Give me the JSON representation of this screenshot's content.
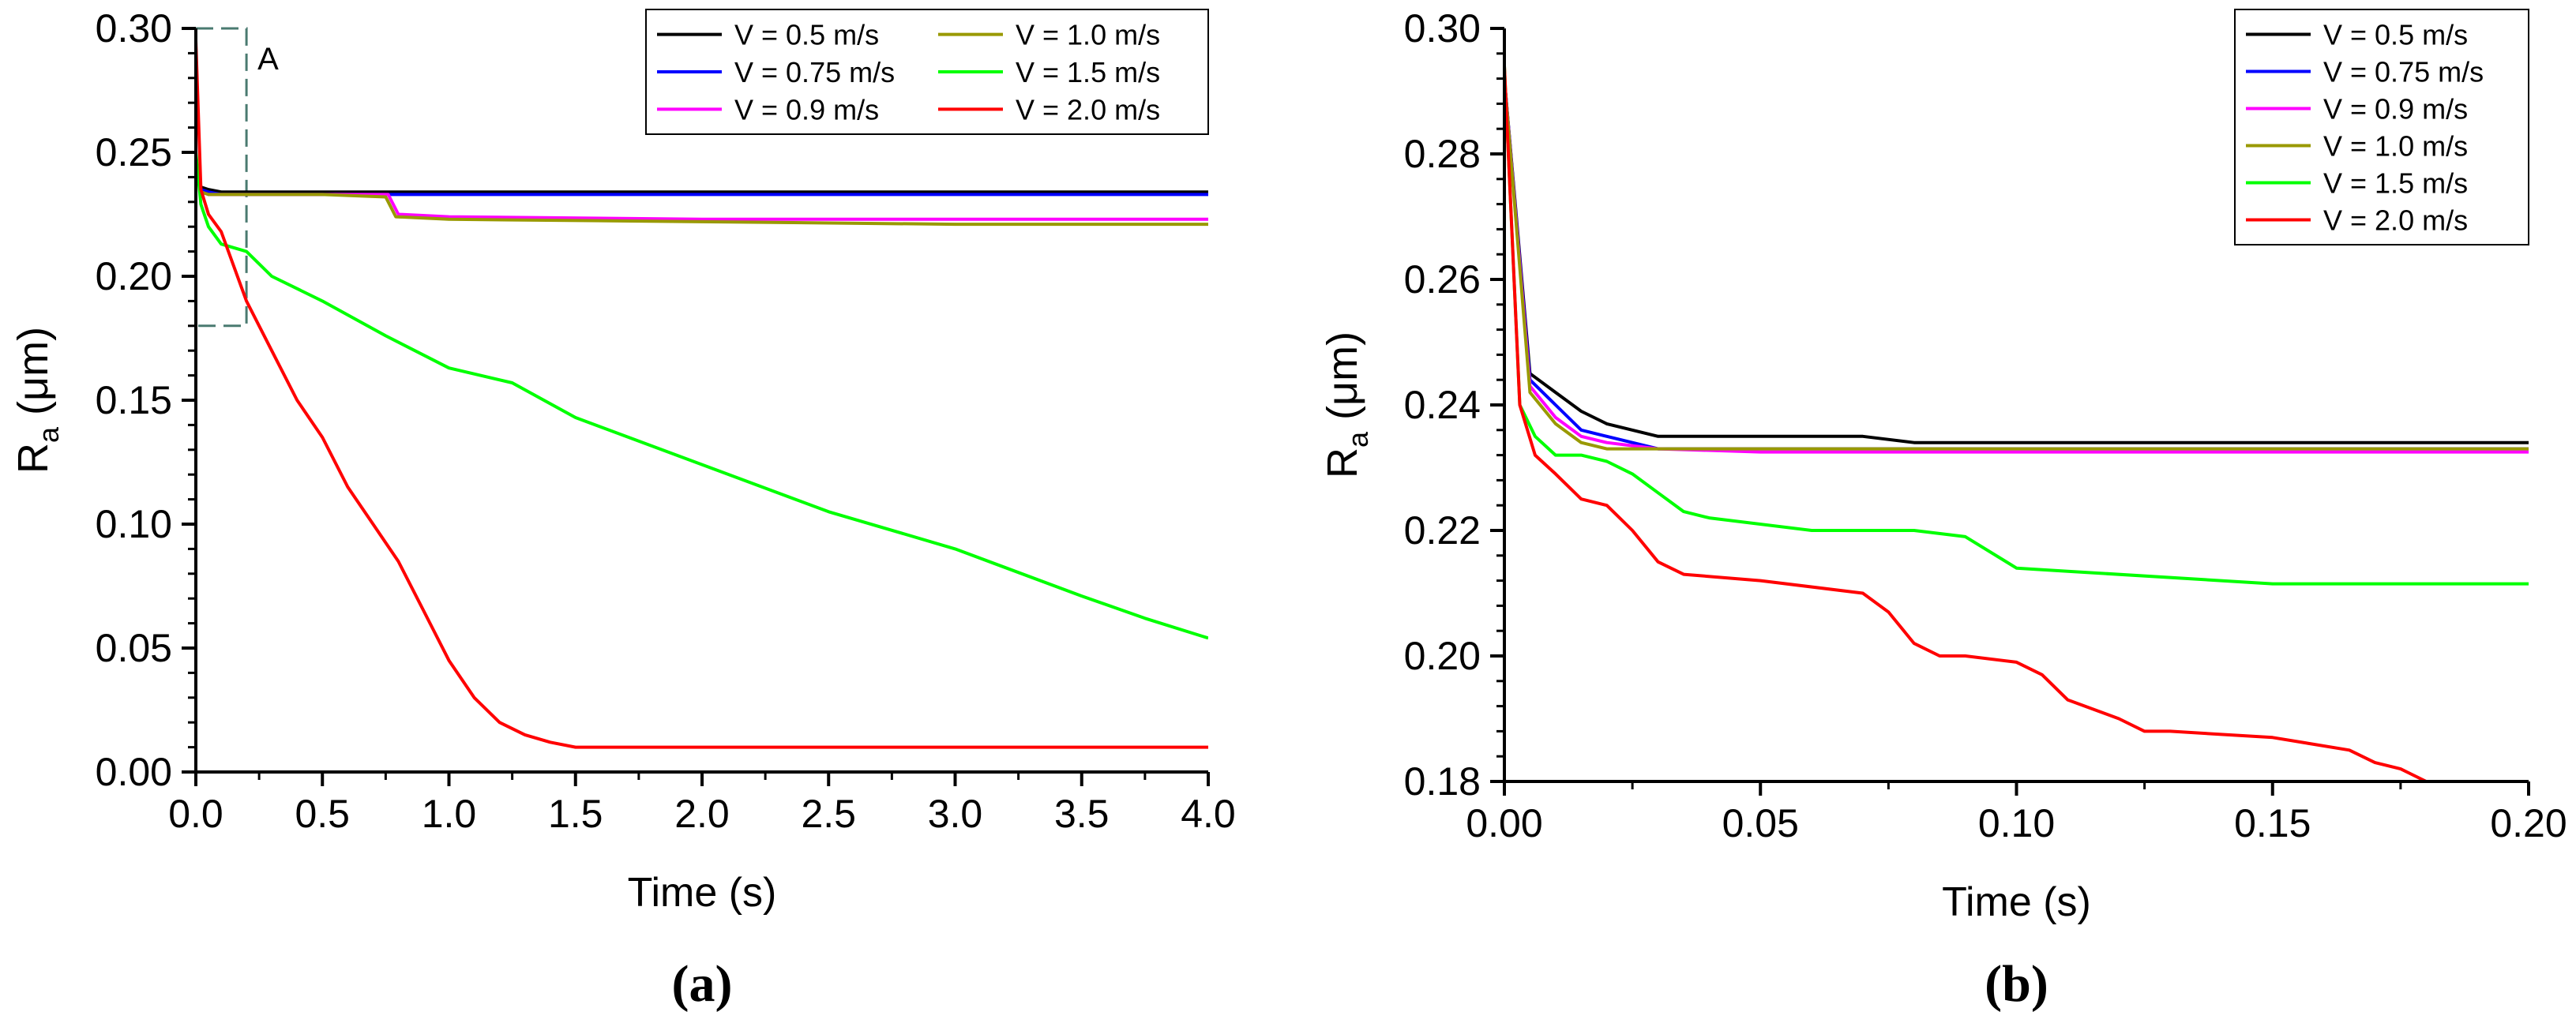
{
  "chart_data": [
    {
      "type": "line",
      "panel_label": "(a)",
      "xlabel": "Time (s)",
      "ylabel_main": "R",
      "ylabel_sub": "a",
      "ylabel_unit": " (μm)",
      "xlim": [
        0,
        4.0
      ],
      "ylim": [
        0,
        0.3
      ],
      "xticks": [
        "0.0",
        "0.5",
        "1.0",
        "1.5",
        "2.0",
        "2.5",
        "3.0",
        "3.5",
        "4.0"
      ],
      "yticks": [
        "0.00",
        "0.05",
        "0.10",
        "0.15",
        "0.20",
        "0.25",
        "0.30"
      ],
      "annotation": {
        "text": "A",
        "x_range": [
          0,
          0.2
        ],
        "y_range": [
          0.18,
          0.3
        ]
      },
      "legend": {
        "placement": "top-right",
        "columns": 2
      },
      "series": [
        {
          "name": "V = 0.5 m/s",
          "color": "#000000",
          "x": [
            0,
            0.02,
            0.05,
            0.1,
            0.2,
            0.5,
            1.0,
            2.0,
            3.0,
            4.0
          ],
          "y": [
            0.245,
            0.236,
            0.235,
            0.234,
            0.234,
            0.234,
            0.234,
            0.234,
            0.234,
            0.234
          ]
        },
        {
          "name": "V = 0.75 m/s",
          "color": "#0000ff",
          "x": [
            0,
            0.02,
            0.05,
            0.1,
            0.2,
            0.5,
            1.0,
            2.0,
            3.0,
            4.0
          ],
          "y": [
            0.245,
            0.235,
            0.234,
            0.233,
            0.233,
            0.233,
            0.233,
            0.233,
            0.233,
            0.233
          ]
        },
        {
          "name": "V = 0.9 m/s",
          "color": "#ff00ff",
          "x": [
            0,
            0.02,
            0.05,
            0.2,
            0.5,
            0.76,
            0.8,
            1.0,
            2.0,
            3.0,
            4.0
          ],
          "y": [
            0.245,
            0.234,
            0.233,
            0.233,
            0.233,
            0.233,
            0.225,
            0.224,
            0.223,
            0.223,
            0.223
          ]
        },
        {
          "name": "V = 1.0 m/s",
          "color": "#999900",
          "x": [
            0,
            0.02,
            0.05,
            0.2,
            0.5,
            0.75,
            0.79,
            1.0,
            2.0,
            3.0,
            4.0
          ],
          "y": [
            0.245,
            0.234,
            0.233,
            0.233,
            0.233,
            0.232,
            0.224,
            0.223,
            0.222,
            0.221,
            0.221
          ]
        },
        {
          "name": "V = 1.5 m/s",
          "color": "#00ff00",
          "x": [
            0,
            0.02,
            0.05,
            0.1,
            0.2,
            0.3,
            0.5,
            0.75,
            1.0,
            1.25,
            1.5,
            2.0,
            2.5,
            3.0,
            3.5,
            3.75,
            4.0
          ],
          "y": [
            0.25,
            0.229,
            0.22,
            0.213,
            0.21,
            0.2,
            0.19,
            0.176,
            0.163,
            0.157,
            0.143,
            0.124,
            0.105,
            0.09,
            0.071,
            0.062,
            0.054
          ]
        },
        {
          "name": "V = 2.0 m/s",
          "color": "#ff0000",
          "x": [
            0,
            0.02,
            0.05,
            0.1,
            0.2,
            0.3,
            0.4,
            0.5,
            0.6,
            0.7,
            0.8,
            0.9,
            1.0,
            1.1,
            1.2,
            1.3,
            1.4,
            1.5,
            1.7,
            2.0,
            2.5,
            3.0,
            3.5,
            4.0
          ],
          "y": [
            0.295,
            0.235,
            0.225,
            0.218,
            0.19,
            0.17,
            0.15,
            0.135,
            0.115,
            0.1,
            0.085,
            0.065,
            0.045,
            0.03,
            0.02,
            0.015,
            0.012,
            0.01,
            0.01,
            0.01,
            0.01,
            0.01,
            0.01,
            0.01
          ]
        }
      ]
    },
    {
      "type": "line",
      "panel_label": "(b)",
      "xlabel": "Time (s)",
      "ylabel_main": "R",
      "ylabel_sub": "a",
      "ylabel_unit": " (μm)",
      "xlim": [
        0,
        0.2
      ],
      "ylim": [
        0.18,
        0.3
      ],
      "xticks": [
        "0.00",
        "0.05",
        "0.10",
        "0.15",
        "0.20"
      ],
      "yticks": [
        "0.18",
        "0.20",
        "0.22",
        "0.24",
        "0.26",
        "0.28",
        "0.30"
      ],
      "legend": {
        "placement": "top-right",
        "columns": 1
      },
      "series": [
        {
          "name": "V = 0.5 m/s",
          "color": "#000000",
          "x": [
            0,
            0.005,
            0.01,
            0.015,
            0.02,
            0.03,
            0.07,
            0.08,
            0.2
          ],
          "y": [
            0.292,
            0.245,
            0.242,
            0.239,
            0.237,
            0.235,
            0.235,
            0.234,
            0.234
          ]
        },
        {
          "name": "V = 0.75 m/s",
          "color": "#0000ff",
          "x": [
            0,
            0.005,
            0.01,
            0.015,
            0.02,
            0.03,
            0.05,
            0.2
          ],
          "y": [
            0.292,
            0.244,
            0.24,
            0.236,
            0.235,
            0.233,
            0.233,
            0.233
          ]
        },
        {
          "name": "V = 0.9 m/s",
          "color": "#ff00ff",
          "x": [
            0,
            0.005,
            0.01,
            0.015,
            0.02,
            0.03,
            0.05,
            0.2
          ],
          "y": [
            0.292,
            0.243,
            0.238,
            0.235,
            0.234,
            0.233,
            0.2325,
            0.2325
          ]
        },
        {
          "name": "V = 1.0 m/s",
          "color": "#999900",
          "x": [
            0,
            0.005,
            0.01,
            0.015,
            0.02,
            0.03,
            0.2
          ],
          "y": [
            0.292,
            0.242,
            0.237,
            0.234,
            0.233,
            0.233,
            0.233
          ]
        },
        {
          "name": "V = 1.5 m/s",
          "color": "#00ff00",
          "x": [
            0,
            0.003,
            0.006,
            0.01,
            0.015,
            0.02,
            0.025,
            0.03,
            0.035,
            0.04,
            0.06,
            0.08,
            0.09,
            0.1,
            0.11,
            0.15,
            0.2
          ],
          "y": [
            0.294,
            0.24,
            0.235,
            0.232,
            0.232,
            0.231,
            0.229,
            0.226,
            0.223,
            0.222,
            0.22,
            0.22,
            0.219,
            0.214,
            0.2135,
            0.2115,
            0.2115
          ]
        },
        {
          "name": "V = 2.0 m/s",
          "color": "#ff0000",
          "x": [
            0,
            0.003,
            0.006,
            0.01,
            0.015,
            0.02,
            0.025,
            0.03,
            0.035,
            0.05,
            0.07,
            0.075,
            0.08,
            0.085,
            0.09,
            0.1,
            0.105,
            0.11,
            0.12,
            0.125,
            0.13,
            0.15,
            0.165,
            0.17,
            0.175,
            0.18
          ],
          "y": [
            0.294,
            0.24,
            0.232,
            0.229,
            0.225,
            0.224,
            0.22,
            0.215,
            0.213,
            0.212,
            0.21,
            0.207,
            0.202,
            0.2,
            0.2,
            0.199,
            0.197,
            0.193,
            0.19,
            0.188,
            0.188,
            0.187,
            0.185,
            0.183,
            0.182,
            0.18
          ]
        }
      ]
    }
  ]
}
